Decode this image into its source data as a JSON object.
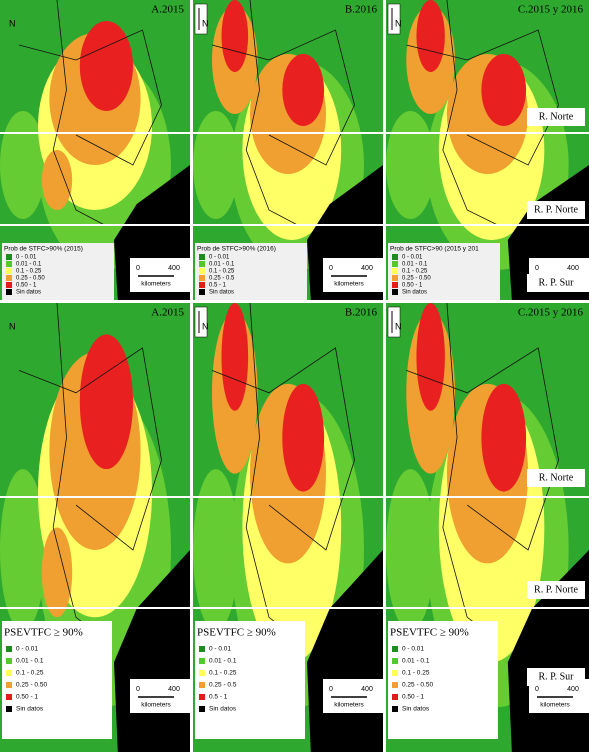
{
  "north_label": "N",
  "rows": [
    {
      "panels": [
        {
          "title": "A.2015",
          "legend_title": "Prob de STFC>90% (2015)",
          "legend_items": [
            "0 - 0.01",
            "0.01 - 0.1",
            "0.1 - 0.25",
            "0.25 - 0.50",
            "0.50 - 1",
            "Sin datos"
          ],
          "scale": {
            "zero": "0",
            "max": "400",
            "unit": "kilometers"
          }
        },
        {
          "title": "B.2016",
          "legend_title": "Prob de STFC>90% (2016)",
          "legend_items": [
            "0 - 0.01",
            "0.01 - 0.1",
            "0.1 - 0.25",
            "0.25 - 0.5",
            "0.5 - 1",
            "Sin datos"
          ],
          "scale": {
            "zero": "0",
            "max": "400",
            "unit": "kilometers"
          }
        },
        {
          "title": "C.2015 y 2016",
          "legend_title": "Prob de STFC>90 (2015 y 201",
          "legend_items": [
            "0 - 0.01",
            "0.01 - 0.1",
            "0.1 - 0.25",
            "0.25 - 0.50",
            "0.50 - 1",
            "Sin datos"
          ],
          "scale": {
            "zero": "0",
            "max": "400",
            "unit": "kilometers"
          }
        }
      ],
      "region_labels": [
        "R. Norte",
        "R. P. Norte",
        "R. P. Sur"
      ]
    },
    {
      "panels": [
        {
          "title": "A.2015",
          "legend_title": "PSEVTFC ≥ 90%",
          "legend_items": [
            "0 - 0.01",
            "0.01 - 0.1",
            "0.1 - 0.25",
            "0.25 - 0.50",
            "0.50 - 1",
            "Sin datos"
          ],
          "scale": {
            "zero": "0",
            "max": "400",
            "unit": "kilometers"
          }
        },
        {
          "title": "B.2016",
          "legend_title": "PSEVTFC ≥ 90%",
          "legend_items": [
            "0 - 0.01",
            "0.01 - 0.1",
            "0.1 - 0.25",
            "0.25 - 0.5",
            "0.5 - 1",
            "Sin datos"
          ],
          "scale": {
            "zero": "0",
            "max": "400",
            "unit": "kilometers"
          }
        },
        {
          "title": "C.2015 y 2016",
          "legend_title": "PSEVTFC ≥ 90%",
          "legend_items": [
            "0 - 0.01",
            "0.01 - 0.1",
            "0.1 - 0.25",
            "0.25 - 0.50",
            "0.50 - 1",
            "Sin datos"
          ],
          "scale": {
            "zero": "0",
            "max": "400",
            "unit": "kilometers"
          }
        }
      ],
      "region_labels": [
        "R. Norte",
        "R. P. Norte",
        "R. P. Sur"
      ]
    }
  ]
}
